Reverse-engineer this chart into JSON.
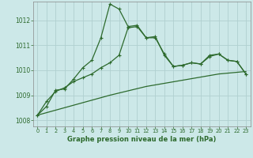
{
  "line1_x": [
    0,
    1,
    2,
    3,
    4,
    5,
    6,
    7,
    8,
    9,
    10,
    11,
    12,
    13,
    14,
    15,
    16,
    17,
    18,
    19,
    20,
    21,
    22,
    23
  ],
  "line1_y": [
    1008.2,
    1008.55,
    1009.2,
    1009.25,
    1009.65,
    1010.1,
    1010.4,
    1011.3,
    1012.65,
    1012.45,
    1011.75,
    1011.8,
    1011.3,
    1011.35,
    1010.6,
    1010.15,
    1010.2,
    1010.3,
    1010.25,
    1010.6,
    1010.65,
    1010.4,
    1010.35,
    1009.85
  ],
  "line2_x": [
    0,
    1,
    2,
    3,
    4,
    5,
    6,
    7,
    8,
    9,
    10,
    11,
    12,
    13,
    14,
    15,
    16,
    17,
    18,
    19,
    20,
    21,
    22,
    23
  ],
  "line2_y": [
    1008.2,
    1008.75,
    1009.15,
    1009.3,
    1009.55,
    1009.7,
    1009.85,
    1010.1,
    1010.3,
    1010.6,
    1011.7,
    1011.75,
    1011.3,
    1011.3,
    1010.65,
    1010.15,
    1010.2,
    1010.3,
    1010.25,
    1010.55,
    1010.65,
    1010.4,
    1010.35,
    1009.85
  ],
  "line3_x": [
    0,
    4,
    8,
    12,
    16,
    20,
    23
  ],
  "line3_y": [
    1008.2,
    1008.6,
    1009.0,
    1009.35,
    1009.6,
    1009.85,
    1009.95
  ],
  "line_color": "#2d6a2d",
  "background_color": "#cce8e8",
  "grid_color": "#b0d0d0",
  "xlabel": "Graphe pression niveau de la mer (hPa)",
  "xlim": [
    -0.5,
    23.5
  ],
  "ylim": [
    1007.75,
    1012.75
  ],
  "yticks": [
    1008,
    1009,
    1010,
    1011,
    1012
  ],
  "xticks": [
    0,
    1,
    2,
    3,
    4,
    5,
    6,
    7,
    8,
    9,
    10,
    11,
    12,
    13,
    14,
    15,
    16,
    17,
    18,
    19,
    20,
    21,
    22,
    23
  ]
}
